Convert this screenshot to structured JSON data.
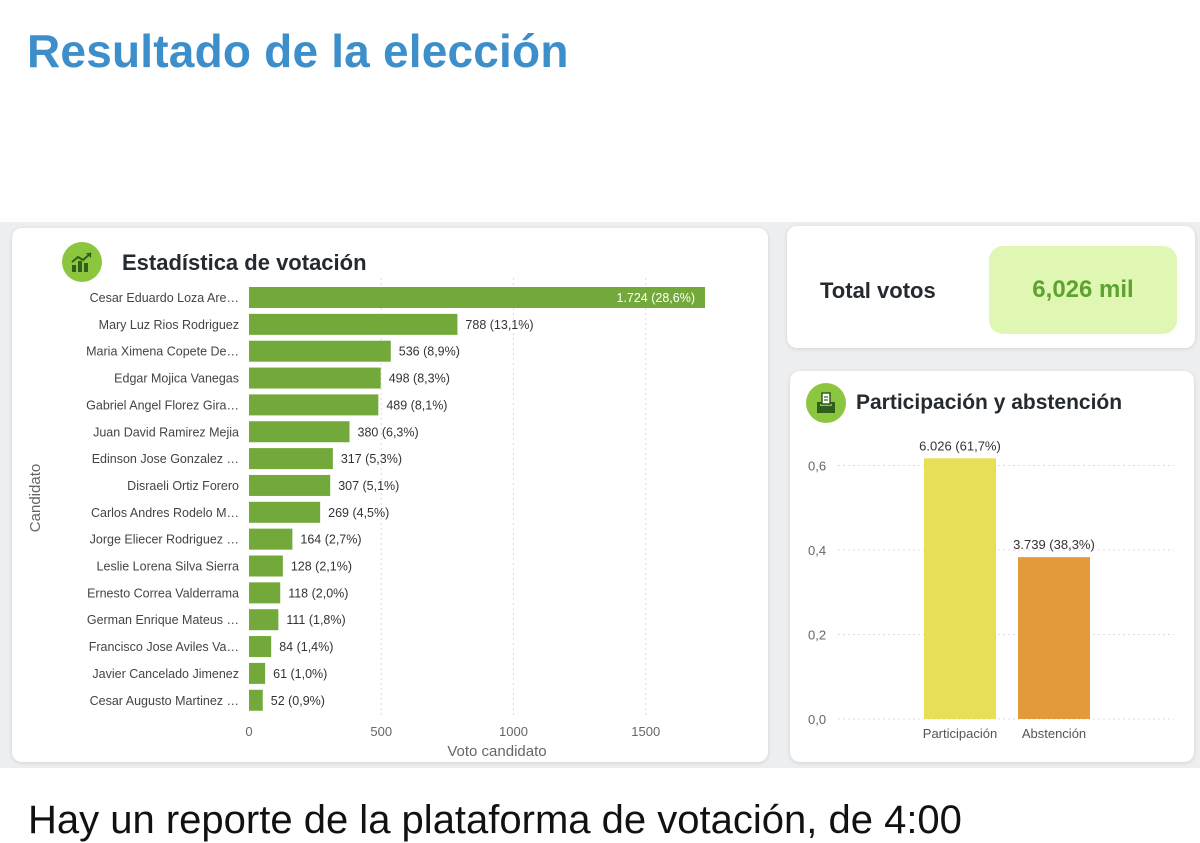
{
  "page": {
    "title": "Resultado de la elección",
    "bottom_text": "Hay un reporte de la plataforma de votación, de 4:00"
  },
  "vote_stats": {
    "title": "Estadística de votación",
    "icon": "chart-trend-icon"
  },
  "total": {
    "label": "Total votos",
    "value": "6,026 mil"
  },
  "participation": {
    "title": "Participación y abstención",
    "icon": "ballot-box-icon"
  },
  "colors": {
    "candidate_bar": "#72a93a",
    "participation_bar": "#e8df58",
    "abstention_bar": "#e39a3b",
    "title_blue": "#3c8fcb",
    "total_green": "#5ea22f"
  },
  "chart_data": [
    {
      "type": "bar",
      "orientation": "horizontal",
      "title": "Estadística de votación",
      "xlabel": "Voto candidato",
      "ylabel": "Candidato",
      "xlim": [
        0,
        1724
      ],
      "xticks": [
        0,
        500,
        1000,
        1500
      ],
      "xtick_labels": [
        "0",
        "500",
        "1000",
        "1500"
      ],
      "categories": [
        "Cesar Eduardo Loza Are…",
        "Mary Luz Rios Rodriguez",
        "Maria Ximena Copete De…",
        "Edgar Mojica Vanegas",
        "Gabriel Angel Florez Gira…",
        "Juan David Ramirez Mejia",
        "Edinson Jose Gonzalez …",
        "Disraeli Ortiz Forero",
        "Carlos Andres Rodelo M…",
        "Jorge Eliecer Rodriguez …",
        "Leslie Lorena Silva Sierra",
        "Ernesto Correa Valderrama",
        "German Enrique Mateus …",
        "Francisco Jose Aviles Va…",
        "Javier Cancelado Jimenez",
        "Cesar Augusto Martinez …"
      ],
      "values": [
        1724,
        788,
        536,
        498,
        489,
        380,
        317,
        307,
        269,
        164,
        128,
        118,
        111,
        84,
        61,
        52
      ],
      "data_labels": [
        "1.724 (28,6%)",
        "788 (13,1%)",
        "536 (8,9%)",
        "498 (8,3%)",
        "489 (8,1%)",
        "380 (6,3%)",
        "317 (5,3%)",
        "307 (5,1%)",
        "269 (4,5%)",
        "164 (2,7%)",
        "128 (2,1%)",
        "118 (2,0%)",
        "111 (1,8%)",
        "84 (1,4%)",
        "61 (1,0%)",
        "52 (0,9%)"
      ]
    },
    {
      "type": "bar",
      "orientation": "vertical",
      "title": "Participación y abstención",
      "categories": [
        "Participación",
        "Abstención"
      ],
      "values": [
        0.617,
        0.383
      ],
      "data_labels": [
        "6.026 (61,7%)",
        "3.739 (38,3%)"
      ],
      "ylim": [
        0,
        0.62
      ],
      "yticks": [
        0,
        0.2,
        0.4,
        0.6
      ],
      "ytick_labels": [
        "0,0",
        "0,2",
        "0,4",
        "0,6"
      ]
    }
  ]
}
